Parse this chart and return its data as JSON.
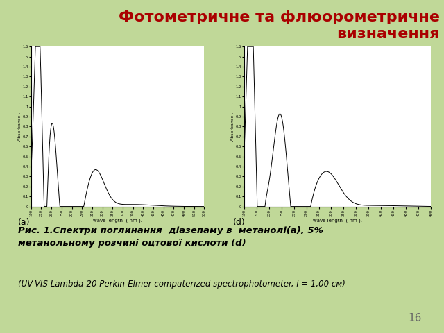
{
  "title_line1": "Фотометричне та флюорометричне",
  "title_line2": "визначення",
  "title_color": "#aa0000",
  "title_fontsize": 16,
  "bg_color_top": "#c8dea0",
  "bg_color_bottom": "#b8d890",
  "caption_bold": "Рис. 1.Спектри поглинання  діазепаму в  метанолі(а), 5%\nметанольному розчині оцтової кислоти (d)",
  "caption_normal": "(UV-VIS Lambda-20 Perkin-Elmer computerized spectrophotometer, l = 1,00 см)",
  "page_number": "16",
  "plot_a_xlabel": "wave length  ( nm ).",
  "plot_a_ylabel": "Absorbance .",
  "plot_a_label": "(a)",
  "plot_d_xlabel": "wave length  ( nm ).",
  "plot_d_ylabel": "Absorbance .",
  "plot_d_label": "(d)",
  "plot_a_xlim": [
    190,
    530
  ],
  "plot_a_ylim": [
    0,
    1.6
  ],
  "plot_a_xticks": [
    190,
    210,
    230,
    250,
    270,
    290,
    310,
    330,
    350,
    370,
    390,
    410,
    430,
    450,
    470,
    490,
    510,
    530
  ],
  "plot_a_yticks": [
    0,
    0.1,
    0.2,
    0.3,
    0.4,
    0.5,
    0.6,
    0.7,
    0.8,
    0.9,
    1.0,
    1.1,
    1.2,
    1.3,
    1.4,
    1.5,
    1.6
  ],
  "plot_d_xlim": [
    190,
    490
  ],
  "plot_d_ylim": [
    0,
    1.6
  ],
  "plot_d_xticks": [
    190,
    210,
    230,
    250,
    270,
    290,
    310,
    330,
    350,
    370,
    390,
    410,
    430,
    450,
    470,
    490
  ],
  "plot_d_yticks": [
    0,
    0.1,
    0.2,
    0.3,
    0.4,
    0.5,
    0.6,
    0.7,
    0.8,
    0.9,
    1.0,
    1.1,
    1.2,
    1.3,
    1.4,
    1.5,
    1.6
  ]
}
